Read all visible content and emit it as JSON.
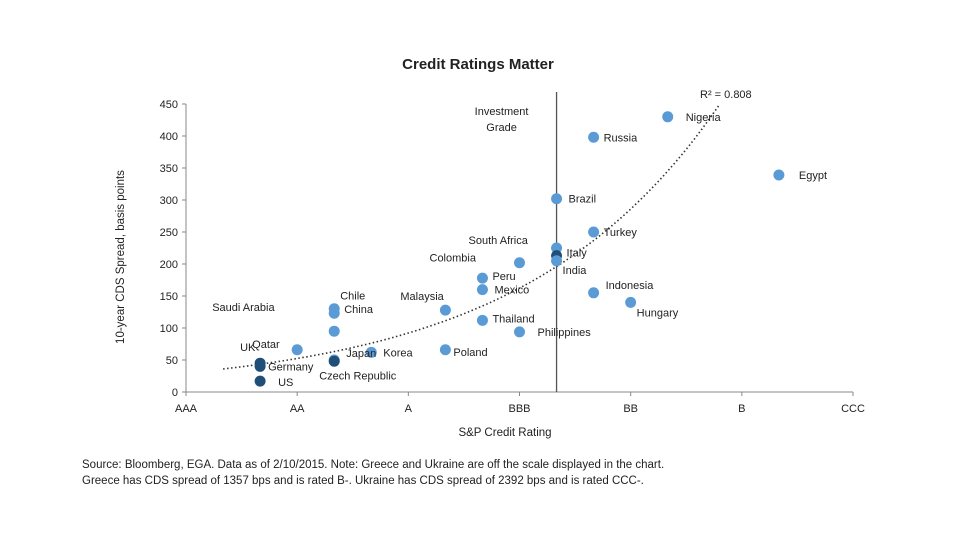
{
  "chart_data": {
    "type": "scatter",
    "title": "Credit Ratings Matter",
    "xlabel": "S&P Credit Rating",
    "ylabel": "10-year CDS Spread, basis points",
    "x_categories": [
      "AAA",
      "AA",
      "A",
      "BBB",
      "BB",
      "B",
      "CCC"
    ],
    "ylim": [
      0,
      450
    ],
    "yticks": [
      0,
      50,
      100,
      150,
      200,
      250,
      300,
      350,
      400,
      450
    ],
    "grid": false,
    "reference_line": {
      "x": "BBB-",
      "label_line1": "Investment",
      "label_line2": "Grade"
    },
    "trendline": {
      "style": "dotted",
      "label": "R² = 0.808"
    },
    "points": [
      {
        "label": "UK",
        "rating": "AA+",
        "value": 45
      },
      {
        "label": "Germany",
        "rating": "AA+",
        "value": 40
      },
      {
        "label": "US",
        "rating": "AA+",
        "value": 17
      },
      {
        "label": "Qatar",
        "rating": "AA",
        "value": 66
      },
      {
        "label": "Saudi Arabia",
        "rating": "AA-",
        "value": 95
      },
      {
        "label": "Japan",
        "rating": "AA-",
        "value": 50
      },
      {
        "label": "Chile",
        "rating": "AA-",
        "value": 123
      },
      {
        "label": "China",
        "rating": "AA-",
        "value": 130
      },
      {
        "label": "Czech Republic",
        "rating": "AA-",
        "value": 48
      },
      {
        "label": "Korea",
        "rating": "A+",
        "value": 62
      },
      {
        "label": "Malaysia",
        "rating": "A-",
        "value": 128
      },
      {
        "label": "Poland",
        "rating": "A-",
        "value": 66
      },
      {
        "label": "Peru",
        "rating": "BBB+",
        "value": 178
      },
      {
        "label": "Mexico",
        "rating": "BBB+",
        "value": 160
      },
      {
        "label": "Thailand",
        "rating": "BBB+",
        "value": 112
      },
      {
        "label": "Colombia",
        "rating": "BBB",
        "value": 202
      },
      {
        "label": "Philippines",
        "rating": "BBB",
        "value": 94
      },
      {
        "label": "South Africa",
        "rating": "BBB-",
        "value": 225
      },
      {
        "label": "Italy",
        "rating": "BBB-",
        "value": 213
      },
      {
        "label": "India",
        "rating": "BBB-",
        "value": 205
      },
      {
        "label": "Brazil",
        "rating": "BBB-",
        "value": 302
      },
      {
        "label": "Russia",
        "rating": "BB+",
        "value": 398
      },
      {
        "label": "Turkey",
        "rating": "BB+",
        "value": 250
      },
      {
        "label": "Indonesia",
        "rating": "BB+",
        "value": 155
      },
      {
        "label": "Hungary",
        "rating": "BB",
        "value": 140
      },
      {
        "label": "Nigeria",
        "rating": "BB-",
        "value": 430
      },
      {
        "label": "Egypt",
        "rating": "B-",
        "value": 339
      }
    ]
  },
  "source_note": {
    "line1": "Source: Bloomberg, EGA. Data as of 2/10/2015. Note: Greece and Ukraine are off the scale displayed in the chart.",
    "line2": "Greece has CDS spread of 1357 bps and is rated B-. Ukraine has CDS spread of 2392 bps and is rated CCC-."
  },
  "colors": {
    "point_light": "#5b9bd5",
    "point_dark": "#1f4e79",
    "axis": "#888888",
    "reference_line": "#555555",
    "trend": "#333333"
  }
}
